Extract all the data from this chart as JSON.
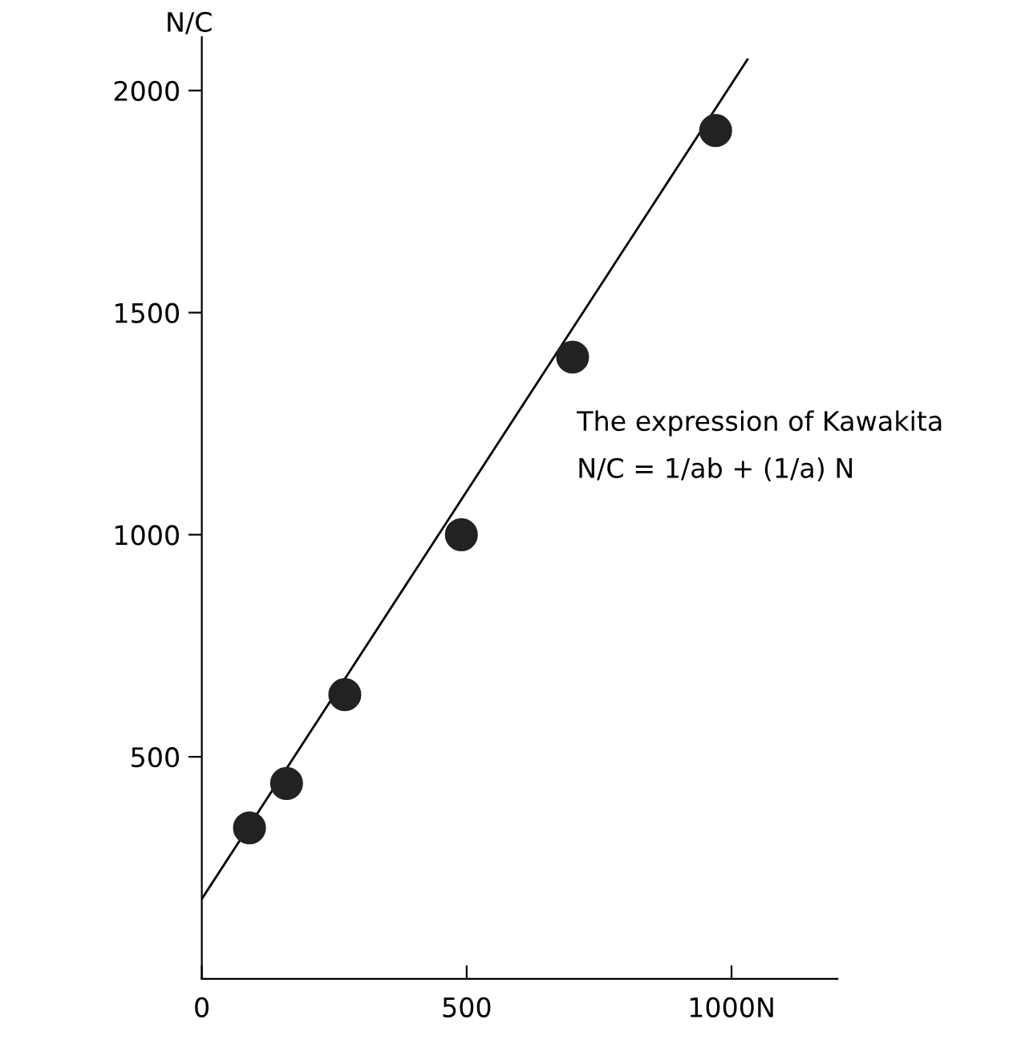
{
  "chart_data": {
    "type": "scatter",
    "ylabel": "N/C",
    "x": [
      90,
      160,
      270,
      490,
      700,
      970
    ],
    "series": [
      {
        "color": "#222222",
        "values": [
          340,
          440,
          640,
          1000,
          1400,
          1910
        ],
        "marker": "circle"
      },
      {
        "type": "line",
        "color": "#000000",
        "x": [
          0,
          1030
        ],
        "values": [
          180,
          2070
        ],
        "marker": "none",
        "line_style": "solid"
      }
    ],
    "xlim": [
      0,
      1200
    ],
    "ylim": [
      0,
      2120
    ],
    "xticks": [
      0,
      500,
      {
        "value": 1000,
        "label": "1000N"
      }
    ],
    "yticks": [
      500,
      1000,
      1500,
      2000
    ],
    "grid": false,
    "legend": false,
    "annotations": [
      "The expression of Kawakita",
      "N/C = 1/ab + (1/a) N"
    ]
  }
}
